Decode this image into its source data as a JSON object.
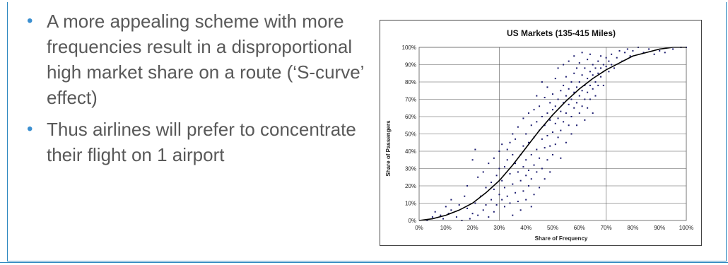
{
  "slide": {
    "bullets": [
      "A more appealing scheme with more frequencies result in a disproportional high market share on a route (‘S-curve’ effect)",
      "Thus airlines will prefer to concentrate their flight on 1 airport"
    ],
    "bullet_glyph": "•",
    "accent_color": "#2f89c0",
    "text_color": "#595959"
  },
  "chart_data": {
    "type": "scatter",
    "title": "US Markets (135-415 Miles)",
    "xlabel": "Share of Frequency",
    "ylabel": "Share of Passengers",
    "xlim": [
      0,
      100
    ],
    "ylim": [
      0,
      100
    ],
    "x_ticks": [
      "0%",
      "10%",
      "20%",
      "30%",
      "40%",
      "50%",
      "60%",
      "70%",
      "80%",
      "90%",
      "100%"
    ],
    "y_ticks": [
      "0%",
      "10%",
      "20%",
      "30%",
      "40%",
      "50%",
      "60%",
      "70%",
      "80%",
      "90%",
      "100%"
    ],
    "grid": "horizontal lines every 10%, vertical lines at 30% and 70%",
    "point_color": "#1a1a6e",
    "curve_color": "#000000",
    "points": [
      [
        3,
        0
      ],
      [
        5,
        2
      ],
      [
        6,
        5
      ],
      [
        8,
        3
      ],
      [
        9,
        1
      ],
      [
        10,
        8
      ],
      [
        11,
        4
      ],
      [
        12,
        12
      ],
      [
        12,
        6
      ],
      [
        14,
        2
      ],
      [
        15,
        9
      ],
      [
        16,
        0
      ],
      [
        17,
        14
      ],
      [
        18,
        20
      ],
      [
        18,
        7
      ],
      [
        19,
        1
      ],
      [
        20,
        4
      ],
      [
        20,
        35
      ],
      [
        21,
        41
      ],
      [
        21,
        10
      ],
      [
        22,
        25
      ],
      [
        22,
        3
      ],
      [
        23,
        14
      ],
      [
        24,
        28
      ],
      [
        24,
        6
      ],
      [
        25,
        19
      ],
      [
        25,
        9
      ],
      [
        26,
        33
      ],
      [
        26,
        2
      ],
      [
        27,
        22
      ],
      [
        27,
        12
      ],
      [
        28,
        18
      ],
      [
        28,
        36
      ],
      [
        28,
        5
      ],
      [
        29,
        26
      ],
      [
        29,
        9
      ],
      [
        30,
        15
      ],
      [
        30,
        40
      ],
      [
        30,
        30
      ],
      [
        31,
        44
      ],
      [
        31,
        12
      ],
      [
        31,
        23
      ],
      [
        32,
        8
      ],
      [
        32,
        31
      ],
      [
        32,
        19
      ],
      [
        33,
        41
      ],
      [
        33,
        35
      ],
      [
        33,
        14
      ],
      [
        34,
        27
      ],
      [
        34,
        45
      ],
      [
        34,
        10
      ],
      [
        35,
        21
      ],
      [
        35,
        50
      ],
      [
        35,
        38
      ],
      [
        35,
        3
      ],
      [
        36,
        33
      ],
      [
        36,
        16
      ],
      [
        36,
        47
      ],
      [
        37,
        28
      ],
      [
        37,
        11
      ],
      [
        37,
        54
      ],
      [
        38,
        38
      ],
      [
        38,
        23
      ],
      [
        38,
        6
      ],
      [
        39,
        43
      ],
      [
        39,
        31
      ],
      [
        39,
        17
      ],
      [
        39,
        59
      ],
      [
        40,
        50
      ],
      [
        40,
        26
      ],
      [
        40,
        35
      ],
      [
        40,
        12
      ],
      [
        41,
        45
      ],
      [
        41,
        62
      ],
      [
        41,
        20
      ],
      [
        41,
        29
      ],
      [
        42,
        55
      ],
      [
        42,
        38
      ],
      [
        42,
        24
      ],
      [
        42,
        8
      ],
      [
        43,
        48
      ],
      [
        43,
        64
      ],
      [
        43,
        32
      ],
      [
        43,
        15
      ],
      [
        44,
        57
      ],
      [
        44,
        41
      ],
      [
        44,
        28
      ],
      [
        44,
        72
      ],
      [
        45,
        52
      ],
      [
        45,
        36
      ],
      [
        45,
        19
      ],
      [
        45,
        66
      ],
      [
        46,
        47
      ],
      [
        46,
        60
      ],
      [
        46,
        30
      ],
      [
        46,
        80
      ],
      [
        47,
        55
      ],
      [
        47,
        42
      ],
      [
        47,
        24
      ],
      [
        47,
        71
      ],
      [
        48,
        62
      ],
      [
        48,
        49
      ],
      [
        48,
        35
      ],
      [
        48,
        77
      ],
      [
        49,
        58
      ],
      [
        49,
        43
      ],
      [
        49,
        68
      ],
      [
        49,
        28
      ],
      [
        50,
        64
      ],
      [
        50,
        51
      ],
      [
        50,
        73
      ],
      [
        50,
        38
      ],
      [
        51,
        66
      ],
      [
        51,
        56
      ],
      [
        51,
        82
      ],
      [
        51,
        44
      ],
      [
        52,
        70
      ],
      [
        52,
        59
      ],
      [
        52,
        48
      ],
      [
        52,
        88
      ],
      [
        53,
        75
      ],
      [
        53,
        63
      ],
      [
        53,
        52
      ],
      [
        53,
        36
      ],
      [
        54,
        68
      ],
      [
        54,
        78
      ],
      [
        54,
        57
      ],
      [
        54,
        90
      ],
      [
        55,
        72
      ],
      [
        55,
        62
      ],
      [
        55,
        83
      ],
      [
        55,
        45
      ],
      [
        56,
        67
      ],
      [
        56,
        76
      ],
      [
        56,
        55
      ],
      [
        56,
        92
      ],
      [
        57,
        70
      ],
      [
        57,
        80
      ],
      [
        57,
        60
      ],
      [
        57,
        50
      ],
      [
        58,
        74
      ],
      [
        58,
        85
      ],
      [
        58,
        65
      ],
      [
        58,
        95
      ],
      [
        59,
        77
      ],
      [
        59,
        68
      ],
      [
        59,
        88
      ],
      [
        59,
        55
      ],
      [
        60,
        80
      ],
      [
        60,
        72
      ],
      [
        60,
        91
      ],
      [
        60,
        62
      ],
      [
        61,
        75
      ],
      [
        61,
        84
      ],
      [
        61,
        66
      ],
      [
        61,
        97
      ],
      [
        62,
        78
      ],
      [
        62,
        88
      ],
      [
        62,
        70
      ],
      [
        62,
        58
      ],
      [
        63,
        82
      ],
      [
        63,
        74
      ],
      [
        63,
        93
      ],
      [
        63,
        65
      ],
      [
        64,
        86
      ],
      [
        64,
        78
      ],
      [
        64,
        70
      ],
      [
        64,
        96
      ],
      [
        65,
        84
      ],
      [
        65,
        76
      ],
      [
        65,
        90
      ],
      [
        65,
        62
      ],
      [
        66,
        80
      ],
      [
        66,
        88
      ],
      [
        66,
        72
      ],
      [
        67,
        85
      ],
      [
        67,
        92
      ],
      [
        67,
        78
      ],
      [
        68,
        88
      ],
      [
        68,
        83
      ],
      [
        68,
        95
      ],
      [
        69,
        90
      ],
      [
        69,
        86
      ],
      [
        69,
        78
      ],
      [
        70,
        89
      ],
      [
        70,
        94
      ],
      [
        71,
        92
      ],
      [
        71,
        86
      ],
      [
        72,
        96
      ],
      [
        72,
        90
      ],
      [
        73,
        88
      ],
      [
        74,
        94
      ],
      [
        75,
        98
      ],
      [
        76,
        92
      ],
      [
        77,
        97
      ],
      [
        78,
        99
      ],
      [
        79,
        95
      ],
      [
        80,
        98
      ],
      [
        82,
        100
      ],
      [
        84,
        97
      ],
      [
        86,
        99
      ],
      [
        88,
        96
      ],
      [
        90,
        98
      ],
      [
        92,
        97
      ],
      [
        95,
        99
      ],
      [
        98,
        100
      ],
      [
        100,
        100
      ]
    ],
    "curve": [
      [
        0,
        0
      ],
      [
        5,
        1
      ],
      [
        10,
        3
      ],
      [
        15,
        6
      ],
      [
        20,
        10
      ],
      [
        25,
        16
      ],
      [
        30,
        23
      ],
      [
        35,
        32
      ],
      [
        40,
        42
      ],
      [
        45,
        52
      ],
      [
        50,
        61
      ],
      [
        55,
        69
      ],
      [
        60,
        76
      ],
      [
        65,
        82
      ],
      [
        70,
        87
      ],
      [
        75,
        91
      ],
      [
        80,
        95
      ],
      [
        85,
        97
      ],
      [
        90,
        99
      ],
      [
        95,
        100
      ],
      [
        100,
        100
      ]
    ]
  }
}
